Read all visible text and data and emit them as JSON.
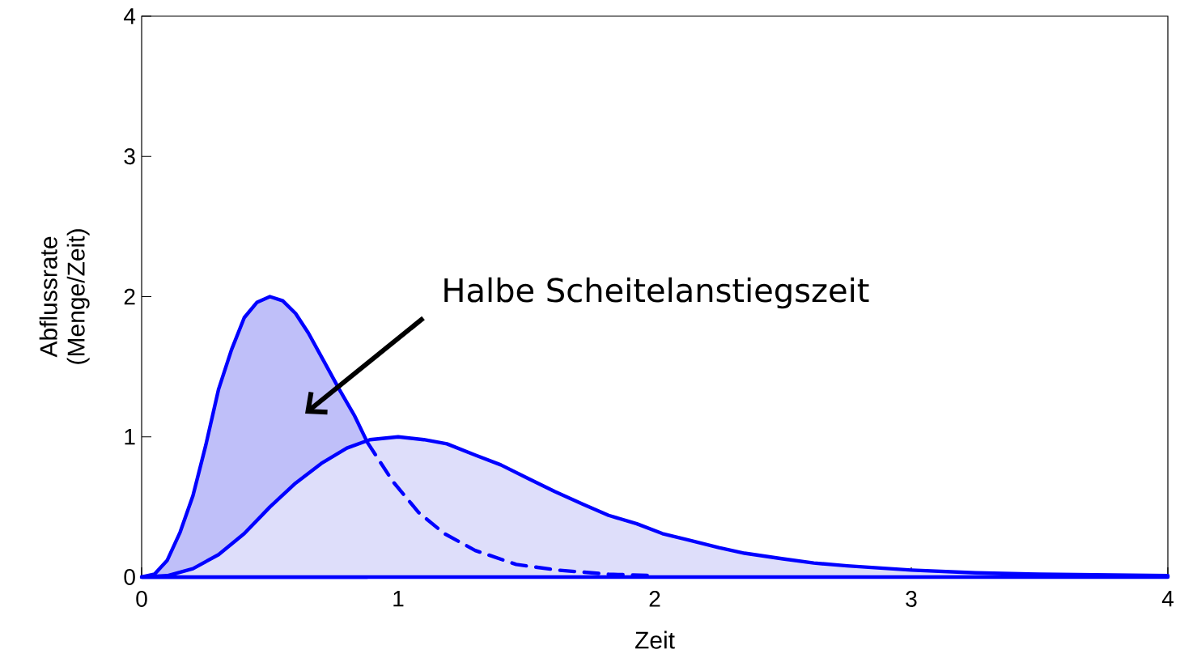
{
  "chart_data": {
    "type": "area",
    "xlabel": "Zeit",
    "ylabel": "Abflussrate (Menge/Zeit)",
    "xlim": [
      0,
      4
    ],
    "ylim": [
      0,
      4
    ],
    "xticks": [
      0,
      1,
      2,
      3,
      4
    ],
    "yticks": [
      0,
      1,
      2,
      3,
      4
    ],
    "series": [
      {
        "color": "#bfbff9",
        "line_style": "solid",
        "x": [
          0,
          0.05,
          0.1,
          0.15,
          0.2,
          0.25,
          0.3,
          0.35,
          0.4,
          0.45,
          0.5,
          0.55,
          0.6,
          0.65,
          0.71,
          0.77,
          0.83,
          0.88
        ],
        "values": [
          0,
          0.02,
          0.12,
          0.32,
          0.58,
          0.94,
          1.34,
          1.62,
          1.85,
          1.96,
          2.0,
          1.97,
          1.88,
          1.74,
          1.54,
          1.34,
          1.15,
          0.96
        ]
      },
      {
        "color": "#dedefa",
        "line_style": "solid",
        "x": [
          0,
          0.1,
          0.2,
          0.3,
          0.4,
          0.5,
          0.6,
          0.7,
          0.8,
          0.89,
          1.0,
          1.1,
          1.19,
          1.3,
          1.4,
          1.51,
          1.61,
          1.72,
          1.82,
          1.93,
          2.03,
          2.14,
          2.25,
          2.35,
          2.5,
          2.62,
          2.75,
          3.0,
          3.25,
          3.5,
          4.0
        ],
        "values": [
          0,
          0.01,
          0.06,
          0.16,
          0.31,
          0.5,
          0.67,
          0.81,
          0.92,
          0.98,
          1.0,
          0.98,
          0.95,
          0.87,
          0.8,
          0.7,
          0.61,
          0.52,
          0.44,
          0.38,
          0.31,
          0.26,
          0.21,
          0.17,
          0.13,
          0.1,
          0.08,
          0.05,
          0.03,
          0.02,
          0.01
        ]
      },
      {
        "type": "line",
        "color": "#0000ff",
        "line_style": "dashed",
        "x": [
          0.88,
          0.98,
          1.08,
          1.18,
          1.3,
          1.46,
          1.62,
          1.82,
          2.0
        ],
        "values": [
          0.96,
          0.68,
          0.46,
          0.31,
          0.19,
          0.09,
          0.05,
          0.02,
          0.01
        ]
      }
    ],
    "annotations": [
      "Halbe Scheitelanstiegszeit"
    ]
  }
}
